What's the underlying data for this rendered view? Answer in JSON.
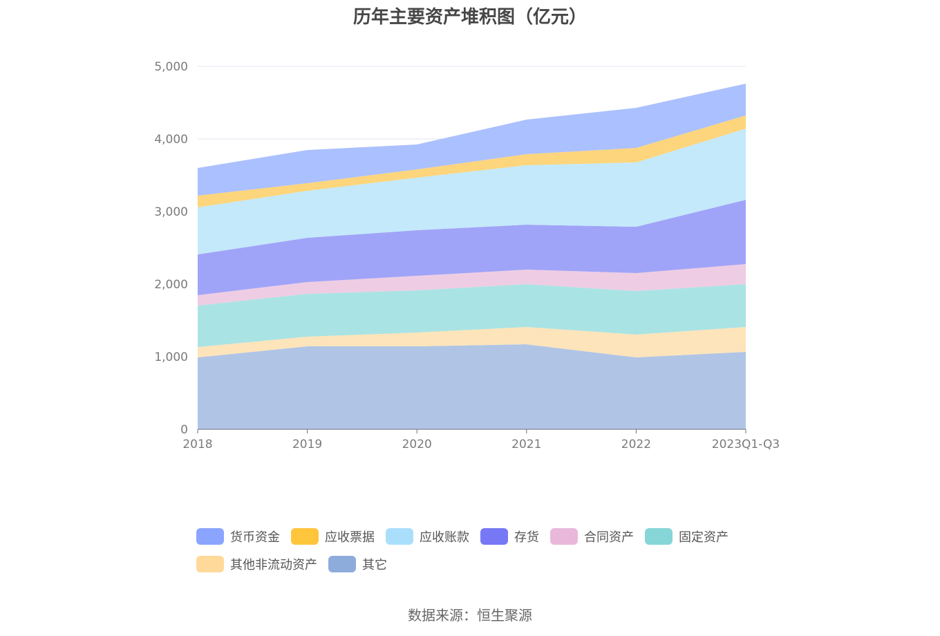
{
  "header": {
    "title": "历年主要资产堆积图（亿元）"
  },
  "footer": {
    "source": "数据来源：恒生聚源"
  },
  "chart_data": {
    "type": "area",
    "stacked": true,
    "title": "历年主要资产堆积图（亿元）",
    "xlabel": "",
    "ylabel": "",
    "ylim": [
      0,
      5000
    ],
    "yticks": [
      0,
      1000,
      2000,
      3000,
      4000,
      5000
    ],
    "ytick_labels": [
      "0",
      "1,000",
      "2,000",
      "3,000",
      "4,000",
      "5,000"
    ],
    "categories": [
      "2018",
      "2019",
      "2020",
      "2021",
      "2022",
      "2023Q1-Q3"
    ],
    "grid": true,
    "legend_position": "bottom",
    "series": [
      {
        "name": "其它",
        "color": "#8eacdb",
        "fill": "#b0c5e6",
        "values": [
          990,
          1143,
          1143,
          1171,
          990,
          1067
        ]
      },
      {
        "name": "其他非流动资产",
        "color": "#ffd99a",
        "fill": "#fde4ba",
        "values": [
          143,
          133,
          190,
          239,
          315,
          343
        ]
      },
      {
        "name": "固定资产",
        "color": "#86d6d8",
        "fill": "#aae3e4",
        "values": [
          572,
          591,
          581,
          590,
          600,
          590
        ]
      },
      {
        "name": "合同资产",
        "color": "#e9b8da",
        "fill": "#eecde4",
        "values": [
          143,
          162,
          200,
          200,
          247,
          276
        ]
      },
      {
        "name": "存货",
        "color": "#7678f5",
        "fill": "#a0a4f8",
        "values": [
          562,
          609,
          629,
          619,
          638,
          886
        ]
      },
      {
        "name": "应收账款",
        "color": "#aadffc",
        "fill": "#c4e9fb",
        "values": [
          647,
          648,
          724,
          819,
          886,
          981
        ]
      },
      {
        "name": "应收票据",
        "color": "#ffc53d",
        "fill": "#fdd57c",
        "values": [
          162,
          104,
          114,
          152,
          200,
          181
        ]
      },
      {
        "name": "货币资金",
        "color": "#8aa4ff",
        "fill": "#abc0fe",
        "values": [
          381,
          458,
          343,
          477,
          553,
          438
        ]
      }
    ]
  },
  "legend": {
    "rows": [
      [
        {
          "label": "货币资金",
          "color": "#8aa4ff"
        },
        {
          "label": "应收票据",
          "color": "#ffc53d"
        },
        {
          "label": "应收账款",
          "color": "#aadffc"
        },
        {
          "label": "存货",
          "color": "#7678f5"
        },
        {
          "label": "合同资产",
          "color": "#e9b8da"
        },
        {
          "label": "固定资产",
          "color": "#86d6d8"
        }
      ],
      [
        {
          "label": "其他非流动资产",
          "color": "#ffd99a"
        },
        {
          "label": "其它",
          "color": "#8eacdb"
        }
      ]
    ]
  }
}
